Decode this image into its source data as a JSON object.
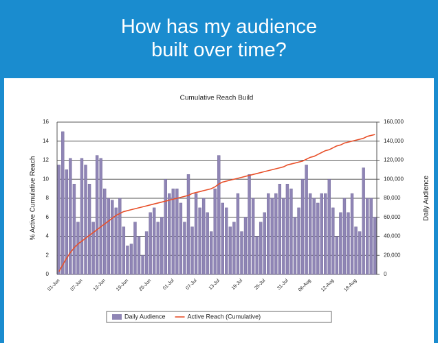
{
  "header": {
    "title": "How has my audience built over time?"
  },
  "chart_data": {
    "type": "combo",
    "title": "Cumulative Reach Build",
    "y_label": "% Active Cumulative Reach",
    "y2_label": "Daily Audience",
    "categories": [
      "01-Jun",
      null,
      null,
      null,
      null,
      null,
      "07-Jun",
      null,
      null,
      null,
      null,
      null,
      "13-Jun",
      null,
      null,
      null,
      null,
      null,
      "19-Jun",
      null,
      null,
      null,
      null,
      null,
      "25-Jun",
      null,
      null,
      null,
      null,
      null,
      "01-Jul",
      null,
      null,
      null,
      null,
      null,
      "07-Jul",
      null,
      null,
      null,
      null,
      null,
      "13-Jul",
      null,
      null,
      null,
      null,
      null,
      "19-Jul",
      null,
      null,
      null,
      null,
      null,
      "25-Jul",
      null,
      null,
      null,
      null,
      null,
      "31-Jul",
      null,
      null,
      null,
      null,
      null,
      "06-Aug",
      null,
      null,
      null,
      null,
      null,
      "12-Aug",
      null,
      null,
      null,
      null,
      null,
      "18-Aug",
      null,
      null,
      null,
      null,
      null
    ],
    "series": [
      {
        "name": "Daily Audience",
        "type": "bar",
        "axis": "y2",
        "color": "#8f85b5",
        "values": [
          115000,
          150000,
          110000,
          122000,
          95000,
          55000,
          122000,
          115000,
          95000,
          55000,
          125000,
          122000,
          90000,
          80000,
          78000,
          70000,
          80000,
          50000,
          30000,
          32000,
          55000,
          40000,
          20000,
          45000,
          65000,
          70000,
          55000,
          60000,
          100000,
          85000,
          90000,
          90000,
          75000,
          55000,
          105000,
          50000,
          85000,
          70000,
          80000,
          65000,
          45000,
          90000,
          125000,
          75000,
          70000,
          50000,
          55000,
          85000,
          45000,
          60000,
          105000,
          80000,
          40000,
          55000,
          65000,
          85000,
          80000,
          85000,
          95000,
          80000,
          95000,
          90000,
          60000,
          70000,
          100000,
          115000,
          85000,
          80000,
          75000,
          85000,
          85000,
          100000,
          70000,
          40000,
          65000,
          80000,
          65000,
          85000,
          50000,
          45000,
          112000,
          80000,
          80000,
          60000
        ]
      },
      {
        "name": "Active Reach (Cumulative)",
        "type": "line",
        "axis": "y",
        "color": "#e8502a",
        "values": [
          0.3,
          1.0,
          1.7,
          2.3,
          2.8,
          3.2,
          3.5,
          3.8,
          4.1,
          4.4,
          4.7,
          5.0,
          5.3,
          5.6,
          5.9,
          6.2,
          6.4,
          6.6,
          6.7,
          6.8,
          6.9,
          7.0,
          7.1,
          7.2,
          7.3,
          7.4,
          7.5,
          7.6,
          7.7,
          7.8,
          7.9,
          8.0,
          8.1,
          8.2,
          8.3,
          8.5,
          8.6,
          8.7,
          8.8,
          8.9,
          9.0,
          9.2,
          9.5,
          9.7,
          9.8,
          9.9,
          10.0,
          10.1,
          10.2,
          10.3,
          10.4,
          10.5,
          10.6,
          10.7,
          10.8,
          10.9,
          11.0,
          11.1,
          11.2,
          11.3,
          11.5,
          11.6,
          11.7,
          11.8,
          11.9,
          12.1,
          12.3,
          12.4,
          12.6,
          12.8,
          13.0,
          13.1,
          13.3,
          13.5,
          13.6,
          13.8,
          13.9,
          14.0,
          14.1,
          14.2,
          14.3,
          14.5,
          14.6,
          14.7
        ]
      }
    ],
    "ylim": [
      0,
      16
    ],
    "yticks": [
      0,
      2,
      4,
      6,
      8,
      10,
      12,
      14,
      16
    ],
    "y2lim": [
      0,
      160000
    ],
    "y2ticks": [
      0,
      {
        "value": 20000,
        "label": "20,000"
      },
      {
        "value": 40000,
        "label": "40,000"
      },
      {
        "value": 60000,
        "label": "60,000"
      },
      {
        "value": 80000,
        "label": "80,000"
      },
      {
        "value": 100000,
        "label": "100,000"
      },
      {
        "value": 120000,
        "label": "120,000"
      },
      {
        "value": 140000,
        "label": "140,000"
      },
      {
        "value": 160000,
        "label": "160,000"
      }
    ],
    "grid": true,
    "legend": "bottom"
  }
}
